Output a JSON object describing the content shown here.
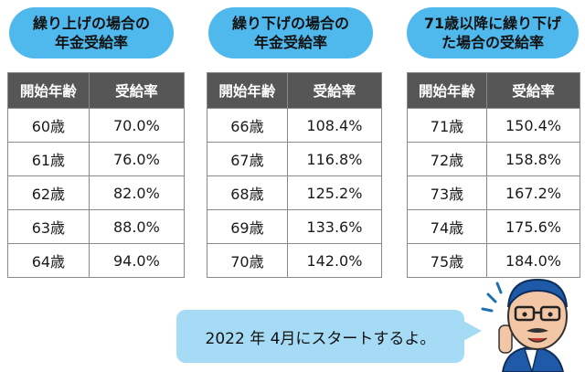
{
  "tables": [
    {
      "title_line1": "繰り上げの場合の",
      "title_line2": "年金受給率",
      "header_age": "開始年齢",
      "header_rate": "受給率",
      "rows": [
        {
          "age": "60歳",
          "rate": "70.0%"
        },
        {
          "age": "61歳",
          "rate": "76.0%"
        },
        {
          "age": "62歳",
          "rate": "82.0%"
        },
        {
          "age": "63歳",
          "rate": "88.0%"
        },
        {
          "age": "64歳",
          "rate": "94.0%"
        }
      ]
    },
    {
      "title_line1": "繰り下げの場合の",
      "title_line2": "年金受給率",
      "header_age": "開始年齢",
      "header_rate": "受給率",
      "rows": [
        {
          "age": "66歳",
          "rate": "108.4%"
        },
        {
          "age": "67歳",
          "rate": "116.8%"
        },
        {
          "age": "68歳",
          "rate": "125.2%"
        },
        {
          "age": "69歳",
          "rate": "133.6%"
        },
        {
          "age": "70歳",
          "rate": "142.0%"
        }
      ]
    },
    {
      "title_line1": "71歳以降に繰り下げ",
      "title_line2": "た場合の受給率",
      "header_age": "開始年齢",
      "header_rate": "受給率",
      "rows": [
        {
          "age": "71歳",
          "rate": "150.4%"
        },
        {
          "age": "72歳",
          "rate": "158.8%"
        },
        {
          "age": "73歳",
          "rate": "167.2%"
        },
        {
          "age": "74歳",
          "rate": "175.6%"
        },
        {
          "age": "75歳",
          "rate": "184.0%"
        }
      ]
    }
  ],
  "speech": {
    "text": "2022 年 4月にスタートするよ。"
  },
  "colors": {
    "pill": "#4fb8ec",
    "header_bg": "#565656",
    "bubble": "#a6dbf6"
  }
}
